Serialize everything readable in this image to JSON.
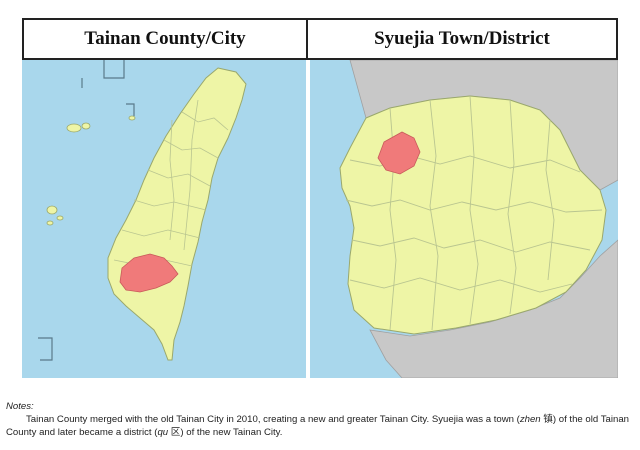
{
  "panels": {
    "left_title": "Tainan County/City",
    "right_title": "Syuejia Town/District"
  },
  "notes": {
    "label": "Notes:",
    "text_part1": "Tainan County merged with the old Tainan City in 2010, creating a new and greater Tainan City. Syuejia was a town (",
    "zhen": "zhen",
    "zhen_char": " 镇",
    "text_part2": ") of the old Tainan County and later became a district (",
    "qu": "qu",
    "qu_char": " 区",
    "text_part3": ") of the new Tainan City."
  },
  "colors": {
    "sea": "#a9d7ec",
    "land": "#eef5a6",
    "highlight": "#f07a7a",
    "outside": "#c8c8c8",
    "border": "#b9c590"
  }
}
